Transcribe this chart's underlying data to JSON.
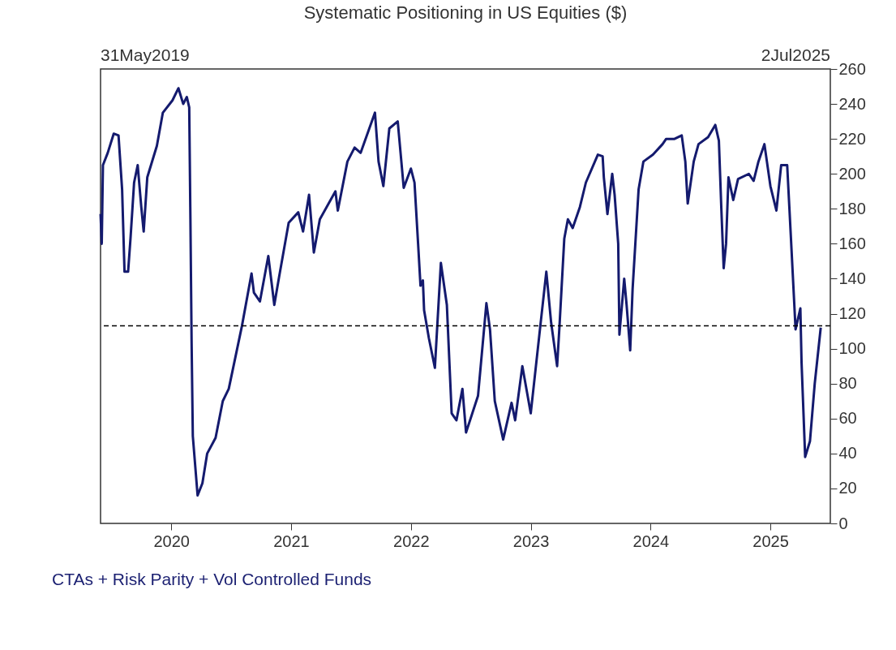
{
  "chart_data": {
    "type": "line",
    "title": "Systematic Positioning in US Equities ($)",
    "annotations": [
      "31May2019",
      "2Jul2025",
      "CTAs + Risk Parity + Vol Controlled Funds"
    ],
    "xlim": [
      2019.41,
      2025.5
    ],
    "xticks": [
      2020,
      2021,
      2022,
      2023,
      2024,
      2025
    ],
    "ylim": [
      0,
      260
    ],
    "yticks": [
      0,
      20,
      40,
      60,
      80,
      100,
      120,
      140,
      160,
      180,
      200,
      220,
      240,
      260
    ],
    "grid": false,
    "marker": "none",
    "line_style": "solid",
    "ref_lines": [
      {
        "axis": "y",
        "value": 113,
        "color": "#000000",
        "line_style": "dashed"
      }
    ],
    "series": [
      {
        "color": "#141a6e",
        "x": [
          2019.41,
          2019.42,
          2019.43,
          2019.47,
          2019.52,
          2019.56,
          2019.59,
          2019.61,
          2019.64,
          2019.66,
          2019.69,
          2019.72,
          2019.75,
          2019.77,
          2019.8,
          2019.88,
          2019.93,
          2020.01,
          2020.06,
          2020.1,
          2020.13,
          2020.15,
          2020.16,
          2020.17,
          2020.18,
          2020.22,
          2020.26,
          2020.3,
          2020.37,
          2020.43,
          2020.48,
          2020.59,
          2020.67,
          2020.69,
          2020.74,
          2020.81,
          2020.86,
          2020.9,
          2020.98,
          2021.06,
          2021.1,
          2021.15,
          2021.19,
          2021.24,
          2021.37,
          2021.39,
          2021.47,
          2021.53,
          2021.58,
          2021.7,
          2021.73,
          2021.77,
          2021.82,
          2021.89,
          2021.94,
          2022.0,
          2022.03,
          2022.06,
          2022.08,
          2022.1,
          2022.11,
          2022.15,
          2022.2,
          2022.25,
          2022.3,
          2022.34,
          2022.38,
          2022.43,
          2022.46,
          2022.56,
          2022.63,
          2022.66,
          2022.7,
          2022.77,
          2022.84,
          2022.87,
          2022.93,
          2023.0,
          2023.08,
          2023.13,
          2023.17,
          2023.22,
          2023.24,
          2023.28,
          2023.31,
          2023.35,
          2023.41,
          2023.46,
          2023.56,
          2023.6,
          2023.61,
          2023.64,
          2023.68,
          2023.7,
          2023.73,
          2023.74,
          2023.78,
          2023.8,
          2023.83,
          2023.85,
          2023.9,
          2023.94,
          2024.02,
          2024.1,
          2024.13,
          2024.2,
          2024.26,
          2024.29,
          2024.31,
          2024.36,
          2024.4,
          2024.48,
          2024.54,
          2024.57,
          2024.59,
          2024.61,
          2024.63,
          2024.65,
          2024.69,
          2024.73,
          2024.82,
          2024.86,
          2024.9,
          2024.95,
          2025.0,
          2025.05,
          2025.09,
          2025.14,
          2025.17,
          2025.21,
          2025.25,
          2025.26,
          2025.29,
          2025.33,
          2025.37,
          2025.42
        ],
        "values": [
          177,
          160,
          205,
          212,
          223,
          222,
          191,
          144,
          144,
          163,
          195,
          205,
          181,
          167,
          198,
          216,
          235,
          242,
          249,
          240,
          244,
          238,
          174,
          103,
          50,
          16,
          23,
          40,
          49,
          70,
          77,
          113,
          143,
          132,
          127,
          153,
          125,
          141,
          172,
          178,
          167,
          188,
          155,
          174,
          190,
          179,
          207,
          215,
          212,
          235,
          207,
          193,
          226,
          230,
          192,
          203,
          195,
          160,
          136,
          139,
          122,
          106,
          89,
          149,
          125,
          63,
          59,
          77,
          52,
          73,
          126,
          111,
          70,
          48,
          69,
          59,
          90,
          63,
          113,
          144,
          115,
          90,
          113,
          163,
          174,
          169,
          181,
          195,
          211,
          210,
          198,
          177,
          200,
          188,
          160,
          108,
          140,
          125,
          99,
          134,
          191,
          207,
          211,
          217,
          220,
          220,
          222,
          207,
          183,
          207,
          217,
          221,
          228,
          219,
          181,
          146,
          160,
          198,
          185,
          197,
          200,
          196,
          207,
          217,
          193,
          179,
          205,
          205,
          165,
          111,
          123,
          92,
          38,
          47,
          80,
          112
        ]
      }
    ]
  }
}
